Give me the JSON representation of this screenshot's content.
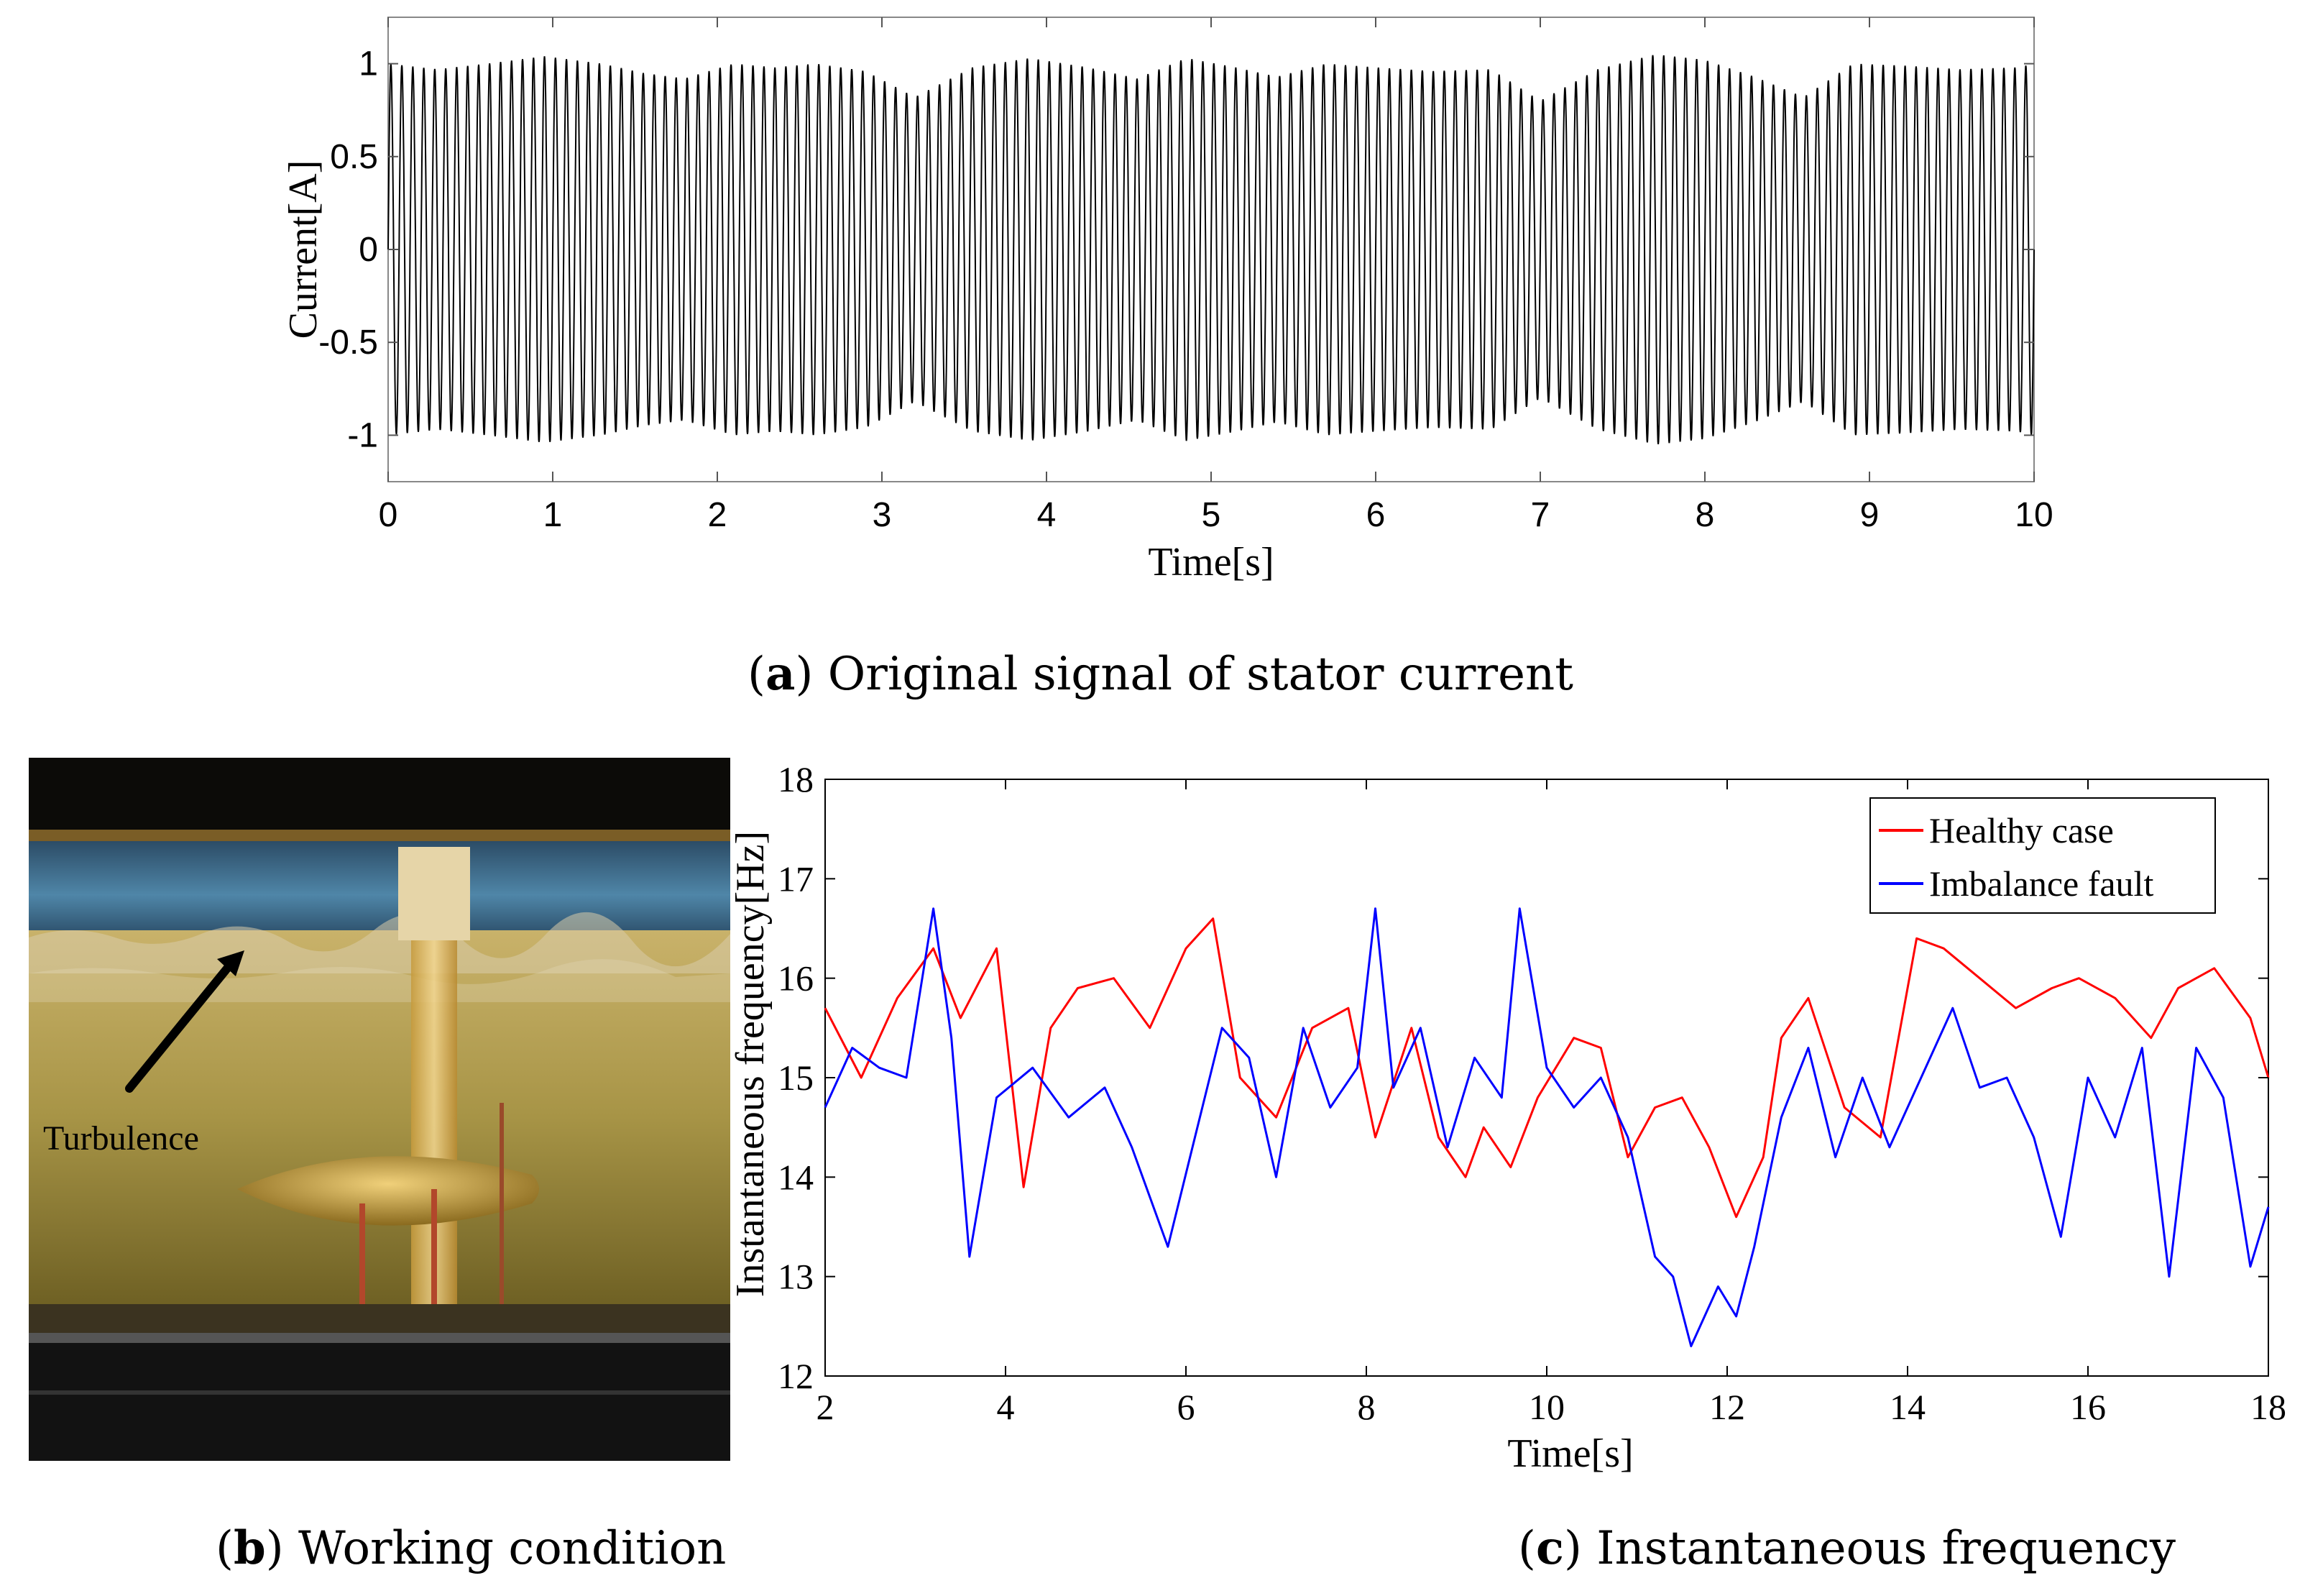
{
  "panel_a": {
    "caption_letter": "a",
    "caption_text": "Original signal of stator current"
  },
  "panel_b": {
    "caption_letter": "b",
    "caption_text": "Working condition",
    "annotation": "Turbulence"
  },
  "panel_c": {
    "caption_letter": "c",
    "caption_text": "Instantaneous frequency"
  },
  "chart_data": [
    {
      "id": "a",
      "type": "line",
      "xlabel": "Time[s]",
      "ylabel": "Current[A]",
      "xlim": [
        0,
        10
      ],
      "ylim": [
        -1.25,
        1.25
      ],
      "xticks": [
        "0",
        "1",
        "2",
        "3",
        "4",
        "5",
        "6",
        "7",
        "8",
        "9",
        "10"
      ],
      "yticks": [
        "-1",
        "-0.5",
        "0",
        "0.5",
        "1"
      ],
      "line_color": "#000000",
      "grid": false,
      "carrier_cycles_per_second": 15,
      "envelope": {
        "t": [
          0,
          0.3,
          0.6,
          0.95,
          1.3,
          1.55,
          1.8,
          2.1,
          2.35,
          2.6,
          2.9,
          3.2,
          3.55,
          3.9,
          4.25,
          4.55,
          4.85,
          5.15,
          5.4,
          5.7,
          6.0,
          6.35,
          6.7,
          7.0,
          7.35,
          7.7,
          8.0,
          8.3,
          8.6,
          8.9,
          9.2,
          9.55,
          9.9,
          10.0
        ],
        "amp": [
          1.0,
          0.97,
          1.0,
          1.04,
          1.0,
          0.95,
          0.92,
          1.0,
          0.98,
          1.0,
          0.96,
          0.82,
          0.98,
          1.03,
          0.98,
          0.92,
          1.03,
          0.98,
          0.93,
          1.0,
          0.98,
          0.96,
          0.97,
          0.8,
          0.97,
          1.05,
          1.02,
          0.93,
          0.82,
          1.0,
          0.99,
          0.97,
          0.98,
          1.0
        ]
      }
    },
    {
      "id": "c",
      "type": "line",
      "xlabel": "Time[s]",
      "ylabel": "Instantaneous frequency[Hz]",
      "xlim": [
        2,
        18
      ],
      "ylim": [
        12,
        18
      ],
      "xticks": [
        "2",
        "4",
        "6",
        "8",
        "10",
        "12",
        "14",
        "16",
        "18"
      ],
      "yticks": [
        "12",
        "13",
        "14",
        "15",
        "16",
        "17",
        "18"
      ],
      "legend_position": "top-right",
      "grid": false,
      "series": [
        {
          "name": "Healthy case",
          "color": "#ff0000",
          "x": [
            2.0,
            2.4,
            2.8,
            3.2,
            3.5,
            3.9,
            4.2,
            4.5,
            4.8,
            5.2,
            5.6,
            6.0,
            6.3,
            6.6,
            7.0,
            7.4,
            7.8,
            8.1,
            8.5,
            8.8,
            9.1,
            9.3,
            9.6,
            9.9,
            10.3,
            10.6,
            10.9,
            11.2,
            11.5,
            11.8,
            12.1,
            12.4,
            12.6,
            12.9,
            13.3,
            13.7,
            14.1,
            14.4,
            14.8,
            15.2,
            15.6,
            15.9,
            16.3,
            16.7,
            17.0,
            17.4,
            17.8,
            18.0
          ],
          "y": [
            15.7,
            15.0,
            15.8,
            16.3,
            15.6,
            16.3,
            13.9,
            15.5,
            15.9,
            16.0,
            15.5,
            16.3,
            16.6,
            15.0,
            14.6,
            15.5,
            15.7,
            14.4,
            15.5,
            14.4,
            14.0,
            14.5,
            14.1,
            14.8,
            15.4,
            15.3,
            14.2,
            14.7,
            14.8,
            14.3,
            13.6,
            14.2,
            15.4,
            15.8,
            14.7,
            14.4,
            16.4,
            16.3,
            16.0,
            15.7,
            15.9,
            16.0,
            15.8,
            15.4,
            15.9,
            16.1,
            15.6,
            15.0
          ]
        },
        {
          "name": "Imbalance fault",
          "color": "#0000ff",
          "x": [
            2.0,
            2.3,
            2.6,
            2.9,
            3.2,
            3.4,
            3.6,
            3.9,
            4.3,
            4.7,
            5.1,
            5.4,
            5.8,
            6.1,
            6.4,
            6.7,
            7.0,
            7.3,
            7.6,
            7.9,
            8.1,
            8.3,
            8.6,
            8.9,
            9.2,
            9.5,
            9.7,
            10.0,
            10.3,
            10.6,
            10.9,
            11.2,
            11.4,
            11.6,
            11.9,
            12.1,
            12.3,
            12.6,
            12.9,
            13.2,
            13.5,
            13.8,
            14.2,
            14.5,
            14.8,
            15.1,
            15.4,
            15.7,
            16.0,
            16.3,
            16.6,
            16.9,
            17.2,
            17.5,
            17.8,
            18.0
          ],
          "y": [
            14.7,
            15.3,
            15.1,
            15.0,
            16.7,
            15.4,
            13.2,
            14.8,
            15.1,
            14.6,
            14.9,
            14.3,
            13.3,
            14.4,
            15.5,
            15.2,
            14.0,
            15.5,
            14.7,
            15.1,
            16.7,
            14.9,
            15.5,
            14.3,
            15.2,
            14.8,
            16.7,
            15.1,
            14.7,
            15.0,
            14.4,
            13.2,
            13.0,
            12.3,
            12.9,
            12.6,
            13.3,
            14.6,
            15.3,
            14.2,
            15.0,
            14.3,
            15.1,
            15.7,
            14.9,
            15.0,
            14.4,
            13.4,
            15.0,
            14.4,
            15.3,
            13.0,
            15.3,
            14.8,
            13.1,
            13.7
          ]
        }
      ]
    }
  ]
}
